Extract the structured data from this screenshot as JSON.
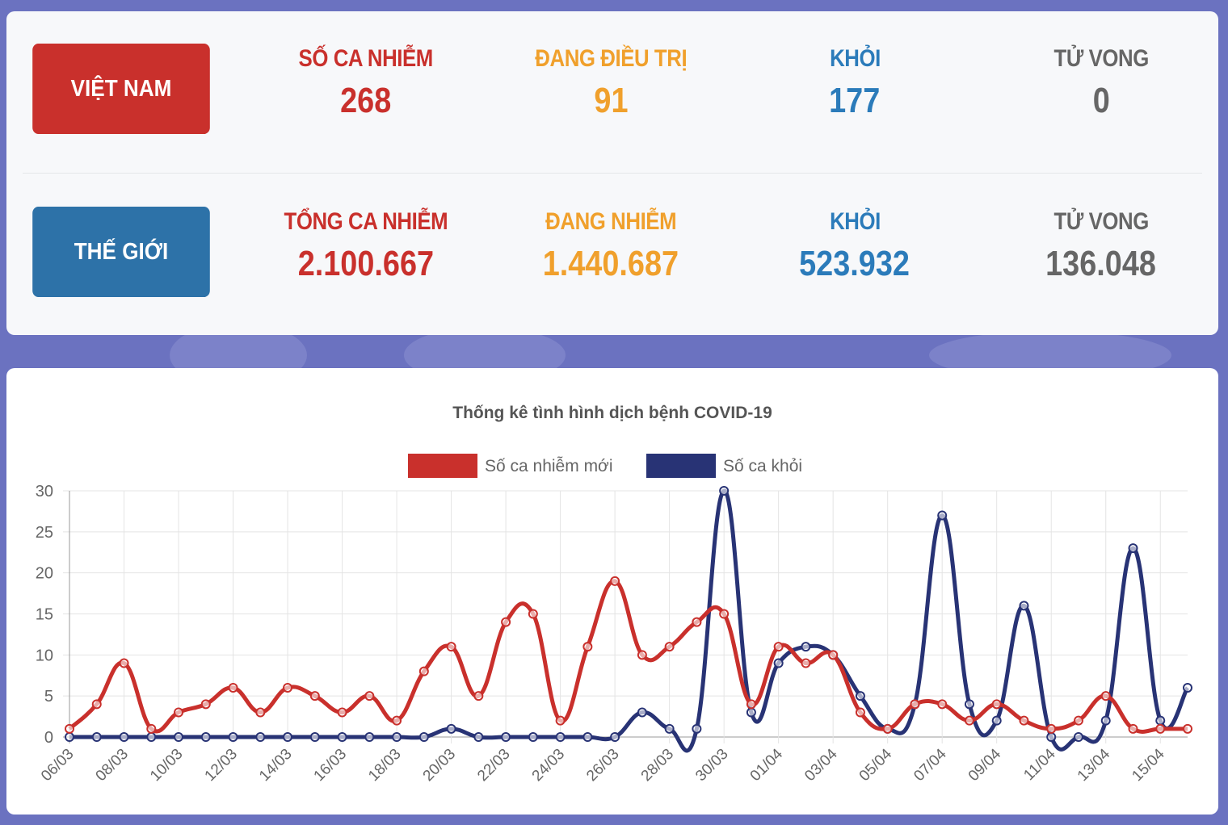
{
  "colors": {
    "red": "#c9302c",
    "orange": "#f0a02c",
    "blue": "#2b7bba",
    "gray": "#666666",
    "navy": "#283375",
    "vn_button": "#c9302c",
    "world_button": "#2d72a8"
  },
  "vietnam": {
    "label": "VIỆT NAM",
    "stats": [
      {
        "label": "SỐ CA NHIỄM",
        "value": "268"
      },
      {
        "label": "ĐANG ĐIỀU TRỊ",
        "value": "91"
      },
      {
        "label": "KHỎI",
        "value": "177"
      },
      {
        "label": "TỬ VONG",
        "value": "0"
      }
    ]
  },
  "world": {
    "label": "THẾ GIỚI",
    "stats": [
      {
        "label": "TỔNG CA NHIỄM",
        "value": "2.100.667"
      },
      {
        "label": "ĐANG NHIỄM",
        "value": "1.440.687"
      },
      {
        "label": "KHỎI",
        "value": "523.932"
      },
      {
        "label": "TỬ VONG",
        "value": "136.048"
      }
    ]
  },
  "chart_data": {
    "type": "line",
    "title": "Thống kê tình hình dịch bệnh COVID-19",
    "xlabel": "",
    "ylabel": "",
    "ylim": [
      0,
      30
    ],
    "yticks": [
      0,
      5,
      10,
      15,
      20,
      25,
      30
    ],
    "grid": true,
    "legend_position": "top",
    "x": [
      "06/03",
      "07/03",
      "08/03",
      "09/03",
      "10/03",
      "11/03",
      "12/03",
      "13/03",
      "14/03",
      "15/03",
      "16/03",
      "17/03",
      "18/03",
      "19/03",
      "20/03",
      "21/03",
      "22/03",
      "23/03",
      "24/03",
      "25/03",
      "26/03",
      "27/03",
      "28/03",
      "29/03",
      "30/03",
      "31/03",
      "01/04",
      "02/04",
      "03/04",
      "04/04",
      "05/04",
      "06/04",
      "07/04",
      "08/04",
      "09/04",
      "10/04",
      "11/04",
      "12/04",
      "13/04",
      "14/04",
      "15/04",
      "16/04"
    ],
    "x_tick_labels": [
      "06/03",
      "08/03",
      "10/03",
      "12/03",
      "14/03",
      "16/03",
      "18/03",
      "20/03",
      "22/03",
      "24/03",
      "26/03",
      "28/03",
      "30/03",
      "01/04",
      "03/04",
      "05/04",
      "07/04",
      "09/04",
      "11/04",
      "13/04",
      "15/04"
    ],
    "series": [
      {
        "name": "Số ca nhiễm mới",
        "color": "#c9302c",
        "values": [
          1,
          4,
          9,
          1,
          3,
          4,
          6,
          3,
          6,
          5,
          3,
          5,
          2,
          8,
          11,
          5,
          14,
          15,
          2,
          11,
          19,
          10,
          11,
          14,
          15,
          4,
          11,
          9,
          10,
          3,
          1,
          4,
          4,
          2,
          4,
          2,
          1,
          2,
          5,
          1,
          1,
          1
        ]
      },
      {
        "name": "Số ca khỏi",
        "color": "#283375",
        "values": [
          0,
          0,
          0,
          0,
          0,
          0,
          0,
          0,
          0,
          0,
          0,
          0,
          0,
          0,
          1,
          0,
          0,
          0,
          0,
          0,
          0,
          3,
          1,
          1,
          30,
          3,
          9,
          11,
          10,
          5,
          1,
          4,
          27,
          4,
          2,
          16,
          0,
          0,
          2,
          23,
          2,
          6
        ]
      }
    ]
  }
}
